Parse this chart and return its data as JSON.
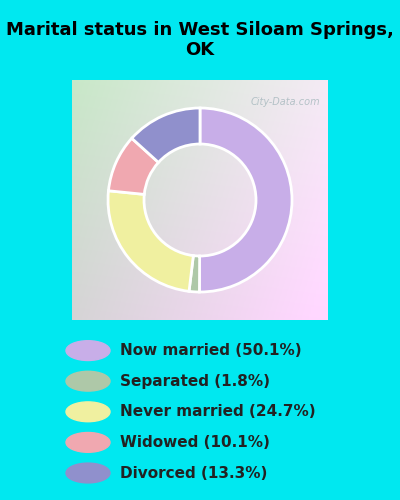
{
  "title": "Marital status in West Siloam Springs,\nOK",
  "background_color": "#00e8f0",
  "chart_bg_color_tl": "#c8e8c8",
  "chart_bg_color_br": "#f0e8f0",
  "slices": [
    50.1,
    1.8,
    24.7,
    10.1,
    13.3
  ],
  "labels": [
    "Now married (50.1%)",
    "Separated (1.8%)",
    "Never married (24.7%)",
    "Widowed (10.1%)",
    "Divorced (13.3%)"
  ],
  "colors": [
    "#c8aee8",
    "#aec8a8",
    "#f0f0a0",
    "#f0a8b0",
    "#9090cc"
  ],
  "watermark": "City-Data.com",
  "title_fontsize": 13,
  "legend_fontsize": 11
}
